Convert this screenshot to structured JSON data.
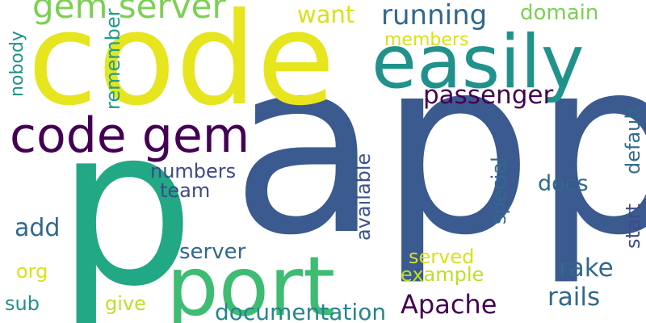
{
  "words": [
    {
      "text": "app",
      "color": "#3b5a8f"
    },
    {
      "text": "code",
      "color": "#e6e51e"
    },
    {
      "text": "p",
      "color": "#22a884"
    },
    {
      "text": "port",
      "color": "#3fbc73"
    },
    {
      "text": "easily",
      "color": "#21918c"
    },
    {
      "text": "code gem",
      "color": "#440154"
    },
    {
      "text": "gem server",
      "color": "#7ad151"
    },
    {
      "text": "passenger",
      "color": "#440154"
    },
    {
      "text": "Apache",
      "color": "#440154"
    },
    {
      "text": "running",
      "color": "#31688e"
    },
    {
      "text": "rake",
      "color": "#31688e"
    },
    {
      "text": "rails",
      "color": "#31688e"
    },
    {
      "text": "want",
      "color": "#d8e219"
    },
    {
      "text": "docs",
      "color": "#31688e"
    },
    {
      "text": "add",
      "color": "#31688e"
    },
    {
      "text": "documentation",
      "color": "#25858e"
    },
    {
      "text": "domain",
      "color": "#7ad151"
    },
    {
      "text": "members",
      "color": "#d8e219"
    },
    {
      "text": "available",
      "color": "#3b528b"
    },
    {
      "text": "special",
      "color": "#31688e"
    },
    {
      "text": "server",
      "color": "#31688e"
    },
    {
      "text": "served",
      "color": "#d8e219"
    },
    {
      "text": "example",
      "color": "#bddf26"
    },
    {
      "text": "team",
      "color": "#3e4a89"
    },
    {
      "text": "numbers",
      "color": "#3e4a89"
    },
    {
      "text": "remember",
      "color": "#1f9e89"
    },
    {
      "text": "nobody",
      "color": "#21918c"
    },
    {
      "text": "give",
      "color": "#bddf26"
    },
    {
      "text": "org",
      "color": "#d8e219"
    },
    {
      "text": "sub",
      "color": "#21918c"
    },
    {
      "text": "start",
      "color": "#3e4a89"
    },
    {
      "text": "default",
      "color": "#31688e"
    }
  ]
}
